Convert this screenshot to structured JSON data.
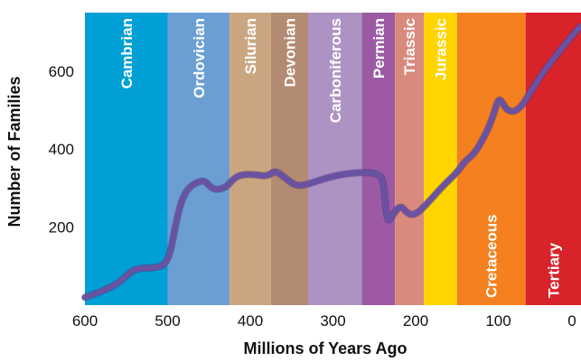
{
  "chart_data": {
    "type": "line",
    "title": "",
    "xlabel": "Millions of Years Ago",
    "ylabel": "Number of Families",
    "xlim": [
      600,
      0
    ],
    "ylim": [
      0,
      750
    ],
    "x_ticks": [
      600,
      500,
      400,
      300,
      200,
      100,
      0
    ],
    "y_ticks": [
      200,
      400,
      600
    ],
    "grid": false,
    "periods": [
      {
        "name": "Cambrian",
        "start": 600,
        "end": 500,
        "color": "#009fd6",
        "label_position": "top"
      },
      {
        "name": "Ordovician",
        "start": 500,
        "end": 425,
        "color": "#6b9fd3",
        "label_position": "top"
      },
      {
        "name": "Silurian",
        "start": 425,
        "end": 375,
        "color": "#c9a680",
        "label_position": "top"
      },
      {
        "name": "Devonian",
        "start": 375,
        "end": 330,
        "color": "#b38a72",
        "label_position": "top"
      },
      {
        "name": "Carboniferous",
        "start": 330,
        "end": 265,
        "color": "#ad93c4",
        "label_position": "top"
      },
      {
        "name": "Permian",
        "start": 265,
        "end": 225,
        "color": "#9c5aa5",
        "label_position": "top"
      },
      {
        "name": "Triassic",
        "start": 225,
        "end": 190,
        "color": "#d98a7c",
        "label_position": "top"
      },
      {
        "name": "Jurassic",
        "start": 190,
        "end": 150,
        "color": "#ffd400",
        "label_position": "top"
      },
      {
        "name": "Cretaceous",
        "start": 150,
        "end": 67,
        "color": "#f4801f",
        "label_position": "bottom"
      },
      {
        "name": "Tertiary",
        "start": 67,
        "end": 0,
        "color": "#d9232b",
        "label_position": "bottom"
      }
    ],
    "series": [
      {
        "color": "#6a52a3",
        "x": [
          600,
          580,
          560,
          545,
          535,
          520,
          505,
          497,
          490,
          483,
          475,
          465,
          455,
          445,
          430,
          420,
          410,
          395,
          380,
          370,
          360,
          345,
          330,
          310,
          290,
          270,
          255,
          245,
          240,
          238,
          235,
          232,
          225,
          218,
          212,
          205,
          195,
          180,
          165,
          150,
          140,
          128,
          115,
          107,
          100,
          95,
          90,
          80,
          70,
          60,
          45,
          30,
          15,
          5,
          0
        ],
        "values": [
          20,
          35,
          55,
          85,
          95,
          95,
          100,
          130,
          210,
          270,
          300,
          315,
          320,
          295,
          300,
          325,
          335,
          335,
          330,
          345,
          330,
          305,
          310,
          325,
          335,
          340,
          340,
          335,
          325,
          290,
          225,
          215,
          240,
          255,
          240,
          230,
          240,
          275,
          310,
          340,
          370,
          390,
          440,
          480,
          530,
          520,
          500,
          495,
          515,
          550,
          600,
          640,
          680,
          705,
          715
        ]
      }
    ]
  }
}
